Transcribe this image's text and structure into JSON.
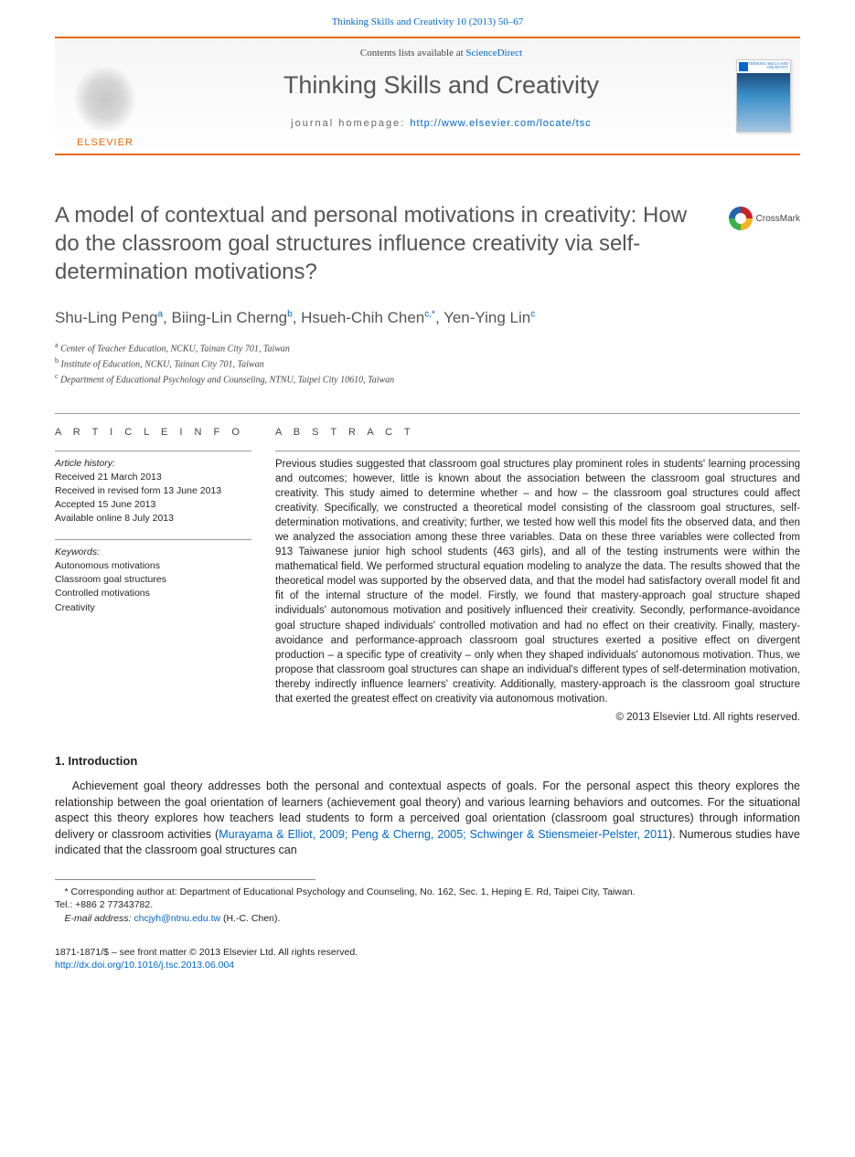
{
  "header": {
    "citation_link": "Thinking Skills and Creativity 10 (2013) 50–67",
    "contents_prefix": "Contents lists available at ",
    "contents_link": "ScienceDirect",
    "journal_name": "Thinking Skills and Creativity",
    "homepage_prefix": "journal homepage: ",
    "homepage_link": "http://www.elsevier.com/locate/tsc",
    "elsevier_label": "ELSEVIER",
    "cover_text": "THINKING SKILLS\nAND CREATIVITY",
    "crossmark_label": "CrossMark"
  },
  "article": {
    "title": "A model of contextual and personal motivations in creativity: How do the classroom goal structures influence creativity via self-determination motivations?",
    "authors_html": "Shu-Ling Peng<sup>a</sup>, Biing-Lin Cherng<sup>b</sup>, Hsueh-Chih Chen<sup>c,*</sup>, Yen-Ying Lin<sup>c</sup>",
    "affiliations": [
      {
        "sup": "a",
        "text": "Center of Teacher Education, NCKU, Tainan City 701, Taiwan"
      },
      {
        "sup": "b",
        "text": "Institute of Education, NCKU, Tainan City 701, Taiwan"
      },
      {
        "sup": "c",
        "text": "Department of Educational Psychology and Counseling, NTNU, Taipei City 10610, Taiwan"
      }
    ]
  },
  "info": {
    "heading": "A R T I C L E    I N F O",
    "history_label": "Article history:",
    "history": [
      "Received 21 March 2013",
      "Received in revised form 13 June 2013",
      "Accepted 15 June 2013",
      "Available online 8 July 2013"
    ],
    "keywords_label": "Keywords:",
    "keywords": [
      "Autonomous motivations",
      "Classroom goal structures",
      "Controlled motivations",
      "Creativity"
    ]
  },
  "abstract": {
    "heading": "A B S T R A C T",
    "text": "Previous studies suggested that classroom goal structures play prominent roles in students' learning processing and outcomes; however, little is known about the association between the classroom goal structures and creativity. This study aimed to determine whether – and how – the classroom goal structures could affect creativity. Specifically, we constructed a theoretical model consisting of the classroom goal structures, self-determination motivations, and creativity; further, we tested how well this model fits the observed data, and then we analyzed the association among these three variables. Data on these three variables were collected from 913 Taiwanese junior high school students (463 girls), and all of the testing instruments were within the mathematical field. We performed structural equation modeling to analyze the data. The results showed that the theoretical model was supported by the observed data, and that the model had satisfactory overall model fit and fit of the internal structure of the model. Firstly, we found that mastery-approach goal structure shaped individuals' autonomous motivation and positively influenced their creativity. Secondly, performance-avoidance goal structure shaped individuals' controlled motivation and had no effect on their creativity. Finally, mastery-avoidance and performance-approach classroom goal structures exerted a positive effect on divergent production – a specific type of creativity – only when they shaped individuals' autonomous motivation. Thus, we propose that classroom goal structures can shape an individual's different types of self-determination motivation, thereby indirectly influence learners' creativity. Additionally, mastery-approach is the classroom goal structure that exerted the greatest effect on creativity via autonomous motivation.",
    "copyright": "© 2013 Elsevier Ltd. All rights reserved."
  },
  "body": {
    "section_number": "1.",
    "section_title": "Introduction",
    "paragraph_pre": "Achievement goal theory addresses both the personal and contextual aspects of goals. For the personal aspect this theory explores the relationship between the goal orientation of learners (achievement goal theory) and various learning behaviors and outcomes. For the situational aspect this theory explores how teachers lead students to form a perceived goal orientation (classroom goal structures) through information delivery or classroom activities (",
    "paragraph_link": "Murayama & Elliot, 2009; Peng & Cherng, 2005; Schwinger & Stiensmeier-Pelster, 2011",
    "paragraph_post": "). Numerous studies have indicated that the classroom goal structures can"
  },
  "footnote": {
    "corr_prefix": "* Corresponding author at: Department of Educational Psychology and Counseling, No. 162, Sec. 1, Heping E. Rd, Taipei City, Taiwan.",
    "tel": "Tel.: +886 2 77343782.",
    "email_label": "E-mail address: ",
    "email": "chcjyh@ntnu.edu.tw",
    "email_after": " (H.-C. Chen)."
  },
  "bottom": {
    "issn_line": "1871-1871/$ – see front matter © 2013 Elsevier Ltd. All rights reserved.",
    "doi_link": "http://dx.doi.org/10.1016/j.tsc.2013.06.004"
  },
  "colors": {
    "accent": "#e8690b",
    "link": "#0066cc",
    "text": "#231f20",
    "heading_gray": "#555555"
  }
}
